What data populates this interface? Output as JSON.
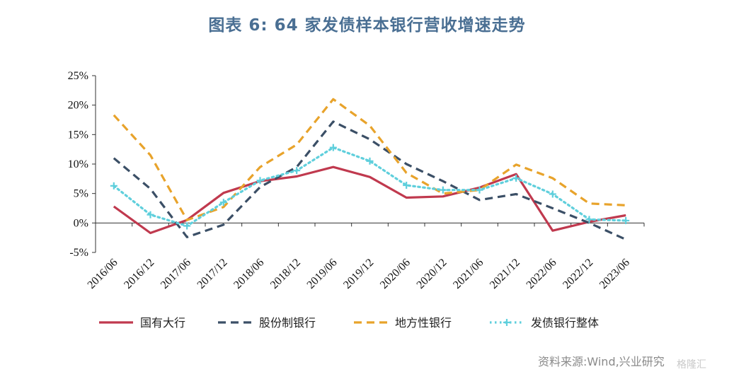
{
  "title": "图表 6:  64 家发债样本银行营收增速走势",
  "source": "资料来源:Wind,兴业研究",
  "watermark": "格隆汇",
  "chart_data": {
    "type": "line",
    "categories": [
      "2016/06",
      "2016/12",
      "2017/06",
      "2017/12",
      "2018/06",
      "2018/12",
      "2019/06",
      "2019/12",
      "2020/06",
      "2020/12",
      "2021/06",
      "2021/12",
      "2022/06",
      "2022/12",
      "2023/06"
    ],
    "yticks": [
      "-5%",
      "0%",
      "5%",
      "10%",
      "15%",
      "20%",
      "25%"
    ],
    "ylim": [
      -5,
      25
    ],
    "legend_position": "bottom",
    "series": [
      {
        "name": "国有大行",
        "color": "#c0394e",
        "style": "solid",
        "values": [
          2.8,
          -1.7,
          0.5,
          5.1,
          7.1,
          7.9,
          9.5,
          7.8,
          4.3,
          4.5,
          6.0,
          8.3,
          -1.3,
          0.2,
          1.3
        ]
      },
      {
        "name": "股份制银行",
        "color": "#3b4f66",
        "style": "dash",
        "values": [
          11.0,
          5.8,
          -2.4,
          -0.3,
          6.1,
          9.5,
          17.2,
          14.2,
          10.0,
          7.1,
          3.9,
          4.9,
          2.5,
          0.0,
          -2.8
        ]
      },
      {
        "name": "地方性银行",
        "color": "#e8a32b",
        "style": "dash",
        "values": [
          18.3,
          11.5,
          0.5,
          2.7,
          9.5,
          13.3,
          21.0,
          16.5,
          8.5,
          5.0,
          5.6,
          9.9,
          7.6,
          3.3,
          3.0
        ]
      },
      {
        "name": "发债银行整体",
        "color": "#5fcfdc",
        "style": "dot",
        "values": [
          6.3,
          1.4,
          -0.5,
          3.5,
          7.2,
          8.9,
          12.8,
          10.5,
          6.4,
          5.6,
          5.6,
          7.6,
          4.9,
          0.6,
          0.4
        ]
      }
    ]
  }
}
